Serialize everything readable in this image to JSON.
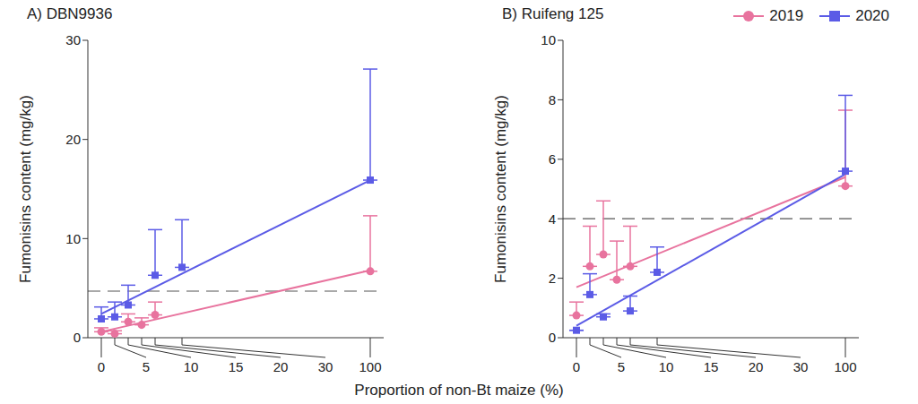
{
  "x_label": "Proportion of non-Bt maize (%)",
  "chart_data": [
    {
      "type": "scatter",
      "title": "A) DBN9936",
      "y_label": "Fumonisins content (mg/kg)",
      "xlim": [
        -5,
        105
      ],
      "xticks": [
        0,
        5,
        10,
        15,
        20,
        30,
        100
      ],
      "ylim": [
        0,
        30
      ],
      "yticks": [
        0,
        10,
        20,
        30
      ],
      "reference_line": 4.7,
      "series": [
        {
          "name": "2019",
          "color": "#e8739e",
          "marker": "circle",
          "x": [
            0,
            5,
            10,
            15,
            20,
            100
          ],
          "values": [
            0.6,
            0.4,
            1.6,
            1.3,
            2.3,
            6.7
          ],
          "error": [
            0.4,
            0.3,
            0.8,
            0.7,
            1.3,
            5.6
          ],
          "fit": {
            "x": [
              0,
              100
            ],
            "values": [
              0.6,
              6.8
            ]
          }
        },
        {
          "name": "2020",
          "color": "#5b5be6",
          "marker": "square",
          "x": [
            0,
            5,
            10,
            20,
            30,
            100
          ],
          "values": [
            1.9,
            2.1,
            3.3,
            6.3,
            7.1,
            15.9
          ],
          "error": [
            1.2,
            1.5,
            2.0,
            4.6,
            4.8,
            11.2
          ],
          "fit": {
            "x": [
              0,
              100
            ],
            "values": [
              2.4,
              15.9
            ]
          }
        }
      ]
    },
    {
      "type": "scatter",
      "title": "B) Ruifeng 125",
      "y_label": "Fumonisins content (mg/kg)",
      "xlim": [
        -5,
        105
      ],
      "xticks": [
        0,
        5,
        10,
        15,
        20,
        30,
        100
      ],
      "ylim": [
        0,
        10
      ],
      "yticks": [
        0,
        2,
        4,
        6,
        8,
        10
      ],
      "reference_line": 4,
      "legend": "upper right",
      "series": [
        {
          "name": "2019",
          "color": "#e8739e",
          "marker": "circle",
          "x": [
            0,
            5,
            10,
            15,
            20,
            100
          ],
          "values": [
            0.75,
            2.4,
            2.8,
            1.95,
            2.4,
            5.1
          ],
          "error": [
            0.45,
            1.35,
            1.8,
            1.3,
            1.35,
            2.55
          ],
          "fit": {
            "x": [
              0,
              100
            ],
            "values": [
              1.7,
              5.4
            ]
          }
        },
        {
          "name": "2020",
          "color": "#5b5be6",
          "marker": "square",
          "x": [
            0,
            5,
            10,
            20,
            30,
            100
          ],
          "values": [
            0.25,
            1.45,
            0.7,
            0.9,
            2.2,
            5.6
          ],
          "error": [
            0,
            0.7,
            0.1,
            0.5,
            0.85,
            2.55
          ],
          "fit": {
            "x": [
              0,
              100
            ],
            "values": [
              0.4,
              5.5
            ]
          }
        }
      ]
    }
  ]
}
